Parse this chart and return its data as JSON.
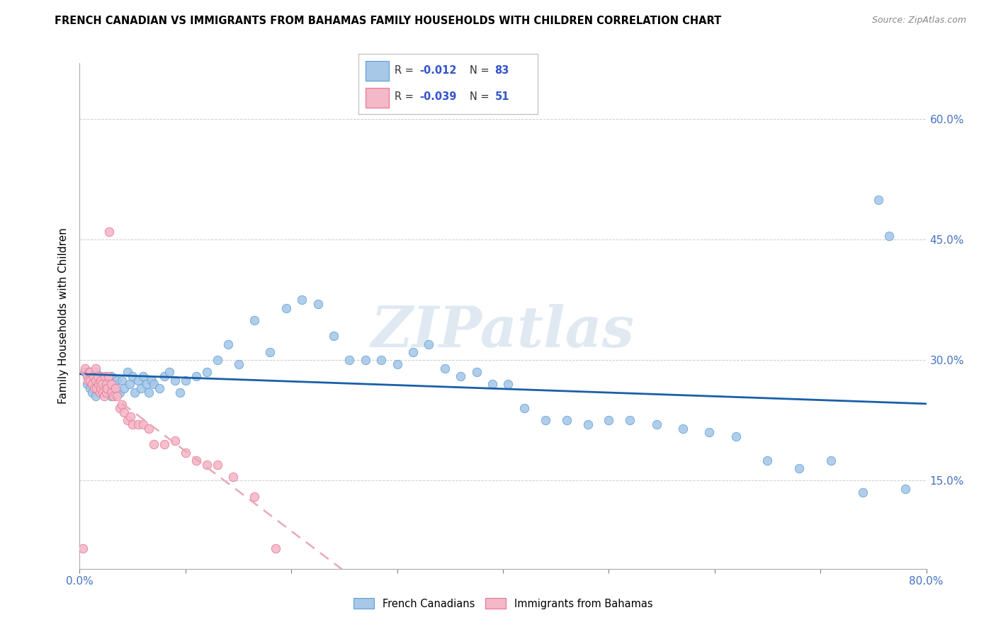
{
  "title": "FRENCH CANADIAN VS IMMIGRANTS FROM BAHAMAS FAMILY HOUSEHOLDS WITH CHILDREN CORRELATION CHART",
  "source": "Source: ZipAtlas.com",
  "ylabel": "Family Households with Children",
  "yticks": [
    0.15,
    0.3,
    0.45,
    0.6
  ],
  "ytick_labels": [
    "15.0%",
    "30.0%",
    "45.0%",
    "60.0%"
  ],
  "xlim": [
    0.0,
    0.8
  ],
  "ylim": [
    0.04,
    0.67
  ],
  "color_blue": "#a8c8e8",
  "color_pink": "#f4b8c8",
  "color_blue_edge": "#5a9fd4",
  "color_pink_edge": "#e87090",
  "color_line_blue": "#1a5fa8",
  "color_line_pink": "#e8a8b8",
  "watermark": "ZIPatlas",
  "blue_r": "-0.012",
  "blue_n": "83",
  "pink_r": "-0.039",
  "pink_n": "51",
  "blue_x": [
    0.005,
    0.007,
    0.008,
    0.01,
    0.01,
    0.012,
    0.013,
    0.015,
    0.015,
    0.017,
    0.018,
    0.02,
    0.02,
    0.022,
    0.023,
    0.025,
    0.025,
    0.027,
    0.028,
    0.03,
    0.03,
    0.032,
    0.033,
    0.035,
    0.038,
    0.04,
    0.042,
    0.045,
    0.047,
    0.05,
    0.052,
    0.055,
    0.058,
    0.06,
    0.063,
    0.065,
    0.068,
    0.07,
    0.075,
    0.08,
    0.085,
    0.09,
    0.095,
    0.1,
    0.11,
    0.12,
    0.13,
    0.14,
    0.15,
    0.165,
    0.18,
    0.195,
    0.21,
    0.225,
    0.24,
    0.255,
    0.27,
    0.285,
    0.3,
    0.315,
    0.33,
    0.345,
    0.36,
    0.375,
    0.39,
    0.405,
    0.42,
    0.44,
    0.46,
    0.48,
    0.5,
    0.52,
    0.545,
    0.57,
    0.595,
    0.62,
    0.65,
    0.68,
    0.71,
    0.74,
    0.755,
    0.765,
    0.78
  ],
  "blue_y": [
    0.285,
    0.27,
    0.28,
    0.265,
    0.275,
    0.26,
    0.27,
    0.255,
    0.285,
    0.265,
    0.275,
    0.26,
    0.28,
    0.27,
    0.265,
    0.275,
    0.26,
    0.27,
    0.265,
    0.28,
    0.255,
    0.27,
    0.265,
    0.275,
    0.26,
    0.275,
    0.265,
    0.285,
    0.27,
    0.28,
    0.26,
    0.275,
    0.265,
    0.28,
    0.27,
    0.26,
    0.275,
    0.27,
    0.265,
    0.28,
    0.285,
    0.275,
    0.26,
    0.275,
    0.28,
    0.285,
    0.3,
    0.32,
    0.295,
    0.35,
    0.31,
    0.365,
    0.375,
    0.37,
    0.33,
    0.3,
    0.3,
    0.3,
    0.295,
    0.31,
    0.32,
    0.29,
    0.28,
    0.285,
    0.27,
    0.27,
    0.24,
    0.225,
    0.225,
    0.22,
    0.225,
    0.225,
    0.22,
    0.215,
    0.21,
    0.205,
    0.175,
    0.165,
    0.175,
    0.135,
    0.5,
    0.455,
    0.14
  ],
  "pink_x": [
    0.003,
    0.005,
    0.007,
    0.008,
    0.009,
    0.01,
    0.01,
    0.012,
    0.013,
    0.014,
    0.015,
    0.015,
    0.016,
    0.017,
    0.018,
    0.019,
    0.02,
    0.02,
    0.021,
    0.022,
    0.023,
    0.024,
    0.025,
    0.025,
    0.026,
    0.027,
    0.028,
    0.03,
    0.03,
    0.032,
    0.034,
    0.035,
    0.038,
    0.04,
    0.042,
    0.045,
    0.048,
    0.05,
    0.055,
    0.06,
    0.065,
    0.07,
    0.08,
    0.09,
    0.1,
    0.11,
    0.12,
    0.13,
    0.145,
    0.165,
    0.185
  ],
  "pink_y": [
    0.065,
    0.29,
    0.28,
    0.275,
    0.285,
    0.275,
    0.285,
    0.27,
    0.28,
    0.265,
    0.275,
    0.29,
    0.265,
    0.28,
    0.27,
    0.26,
    0.275,
    0.265,
    0.27,
    0.26,
    0.255,
    0.28,
    0.27,
    0.26,
    0.265,
    0.28,
    0.46,
    0.26,
    0.27,
    0.255,
    0.265,
    0.255,
    0.24,
    0.245,
    0.235,
    0.225,
    0.23,
    0.22,
    0.22,
    0.22,
    0.215,
    0.195,
    0.195,
    0.2,
    0.185,
    0.175,
    0.17,
    0.17,
    0.155,
    0.13,
    0.065
  ]
}
